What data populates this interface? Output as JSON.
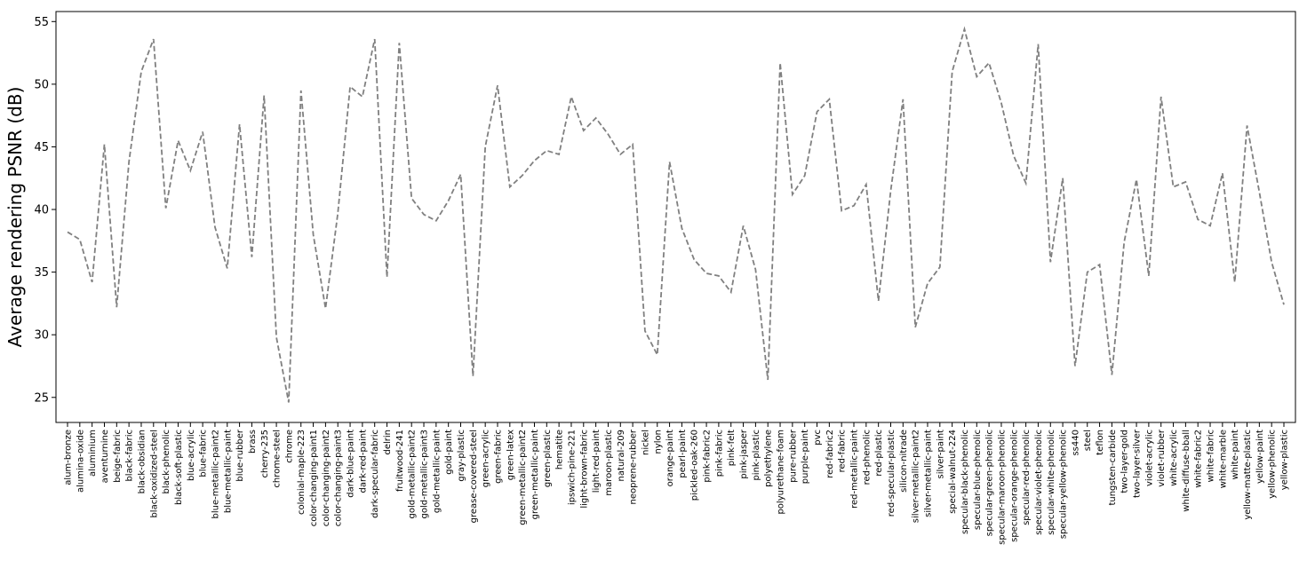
{
  "chart_data": {
    "type": "line",
    "title": "",
    "xlabel": "",
    "ylabel": "Average rendering PSNR (dB)",
    "ylim": [
      23,
      55.8
    ],
    "yticks": [
      25,
      30,
      35,
      40,
      45,
      50,
      55
    ],
    "grid": false,
    "legend": "none",
    "line_style": "dashed",
    "categories": [
      "alum-bronze",
      "alumina-oxide",
      "aluminium",
      "aventurnine",
      "beige-fabric",
      "black-fabric",
      "black-obsidian",
      "black-oxidized-steel",
      "black-phenolic",
      "black-soft-plastic",
      "blue-acrylic",
      "blue-fabric",
      "blue-metallic-paint2",
      "blue-metallic-paint",
      "blue-rubber",
      "brass",
      "cherry-235",
      "chrome-steel",
      "chrome",
      "colonial-maple-223",
      "color-changing-paint1",
      "color-changing-paint2",
      "color-changing-paint3",
      "dark-blue-paint",
      "dark-red-paint",
      "dark-specular-fabric",
      "delrin",
      "fruitwood-241",
      "gold-metallic-paint2",
      "gold-metallic-paint3",
      "gold-metallic-paint",
      "gold-paint",
      "gray-plastic",
      "grease-covered-steel",
      "green-acrylic",
      "green-fabric",
      "green-latex",
      "green-metallic-paint2",
      "green-metallic-paint",
      "green-plastic",
      "hematite",
      "ipswich-pine-221",
      "light-brown-fabric",
      "light-red-paint",
      "maroon-plastic",
      "natural-209",
      "neoprene-rubber",
      "nickel",
      "nylon",
      "orange-paint",
      "pearl-paint",
      "pickled-oak-260",
      "pink-fabric2",
      "pink-fabric",
      "pink-felt",
      "pink-jasper",
      "pink-plastic",
      "polyethylene",
      "polyurethane-foam",
      "pure-rubber",
      "purple-paint",
      "pvc",
      "red-fabric2",
      "red-fabric",
      "red-metallic-paint",
      "red-phenolic",
      "red-plastic",
      "red-specular-plastic",
      "silicon-nitrade",
      "silver-metallic-paint2",
      "silver-metallic-paint",
      "silver-paint",
      "special-walnut-224",
      "specular-black-phenolic",
      "specular-blue-phenolic",
      "specular-green-phenolic",
      "specular-maroon-phenolic",
      "specular-orange-phenolic",
      "specular-red-phenolic",
      "specular-violet-phenolic",
      "specular-white-phenolic",
      "specular-yellow-phenolic",
      "ss440",
      "steel",
      "teflon",
      "tungsten-carbide",
      "two-layer-gold",
      "two-layer-silver",
      "violet-acrylic",
      "violet-rubber",
      "white-acrylic",
      "white-diffuse-bball",
      "white-fabric2",
      "white-fabric",
      "white-marble",
      "white-paint",
      "yellow-matte-plastic",
      "yellow-paint",
      "yellow-phenolic",
      "yellow-plastic"
    ],
    "series": [
      {
        "name": "",
        "color": "#808080",
        "values": [
          38.2,
          37.6,
          34.2,
          45.2,
          32.2,
          43.8,
          51.0,
          53.6,
          40.1,
          45.5,
          43.1,
          46.2,
          38.6,
          35.3,
          46.8,
          36.2,
          49.1,
          29.8,
          24.6,
          49.5,
          38.0,
          32.1,
          39.7,
          49.8,
          49.0,
          53.6,
          34.6,
          53.3,
          40.9,
          39.6,
          39.1,
          40.7,
          42.8,
          26.7,
          45.0,
          49.9,
          41.8,
          42.7,
          43.9,
          44.7,
          44.4,
          49.0,
          46.3,
          47.3,
          46.0,
          44.4,
          45.2,
          30.3,
          28.4,
          43.8,
          38.5,
          36.0,
          34.9,
          34.7,
          33.4,
          38.7,
          35.2,
          26.4,
          51.7,
          41.2,
          42.7,
          47.8,
          48.8,
          39.9,
          40.3,
          42.0,
          32.7,
          41.5,
          48.8,
          30.6,
          34.1,
          35.4,
          51.0,
          54.4,
          50.6,
          51.7,
          48.5,
          44.3,
          42.1,
          53.2,
          35.8,
          42.5,
          27.5,
          35.0,
          35.6,
          26.8,
          37.4,
          42.4,
          34.7,
          49.0,
          41.8,
          42.2,
          39.2,
          38.7,
          42.9,
          34.2,
          46.7,
          41.4,
          35.8,
          32.4
        ]
      }
    ]
  }
}
